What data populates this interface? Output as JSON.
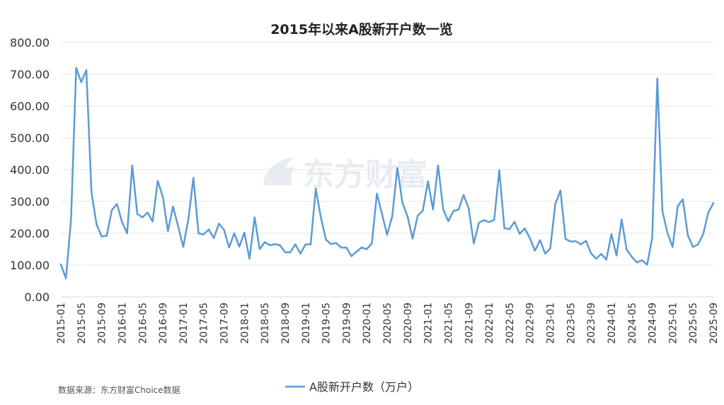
{
  "chart_data": {
    "type": "line",
    "title": "2015年以来A股新开户数一览",
    "ylim": [
      0,
      800
    ],
    "yticks": [
      "0.00",
      "100.00",
      "200.00",
      "300.00",
      "400.00",
      "500.00",
      "600.00",
      "700.00",
      "800.00"
    ],
    "xtick_labels": [
      "2015-01",
      "2015-05",
      "2015-09",
      "2016-01",
      "2016-05",
      "2016-09",
      "2017-01",
      "2017-05",
      "2017-09",
      "2018-01",
      "2018-05",
      "2018-09",
      "2019-01",
      "2019-05",
      "2019-09",
      "2020-01",
      "2020-05",
      "2020-09",
      "2021-01",
      "2021-05",
      "2021-09",
      "2022-01",
      "2022-05",
      "2022-09",
      "2023-01",
      "2023-05",
      "2023-09",
      "2024-01",
      "2024-05",
      "2024-09",
      "2025-01",
      "2025-05",
      "2025-09"
    ],
    "grid": true,
    "legend_position": "bottom",
    "series": [
      {
        "name": "A股新开户数（万户）",
        "color": "#5b9bd5",
        "start": "2015-01",
        "values": [
          102,
          58,
          245,
          720,
          675,
          713,
          330,
          228,
          190,
          192,
          273,
          292,
          235,
          200,
          413,
          260,
          250,
          265,
          237,
          365,
          314,
          207,
          284,
          222,
          157,
          243,
          374,
          200,
          196,
          212,
          185,
          230,
          211,
          155,
          200,
          158,
          202,
          120,
          250,
          150,
          172,
          162,
          166,
          162,
          140,
          140,
          165,
          136,
          165,
          165,
          340,
          250,
          180,
          166,
          169,
          155,
          155,
          128,
          142,
          155,
          150,
          168,
          325,
          260,
          195,
          253,
          406,
          296,
          253,
          183,
          255,
          271,
          363,
          275,
          413,
          275,
          238,
          270,
          274,
          320,
          278,
          168,
          233,
          241,
          235,
          242,
          398,
          216,
          213,
          236,
          198,
          215,
          185,
          145,
          178,
          136,
          152,
          293,
          334,
          182,
          174,
          175,
          165,
          176,
          137,
          120,
          135,
          117,
          197,
          130,
          243,
          148,
          126,
          108,
          115,
          101,
          185,
          686,
          270,
          200,
          157,
          285,
          307,
          193,
          157,
          165,
          197,
          265,
          295
        ]
      }
    ]
  },
  "watermark": "东方财富",
  "source_note": "数据来源：东方财富Choice数据"
}
